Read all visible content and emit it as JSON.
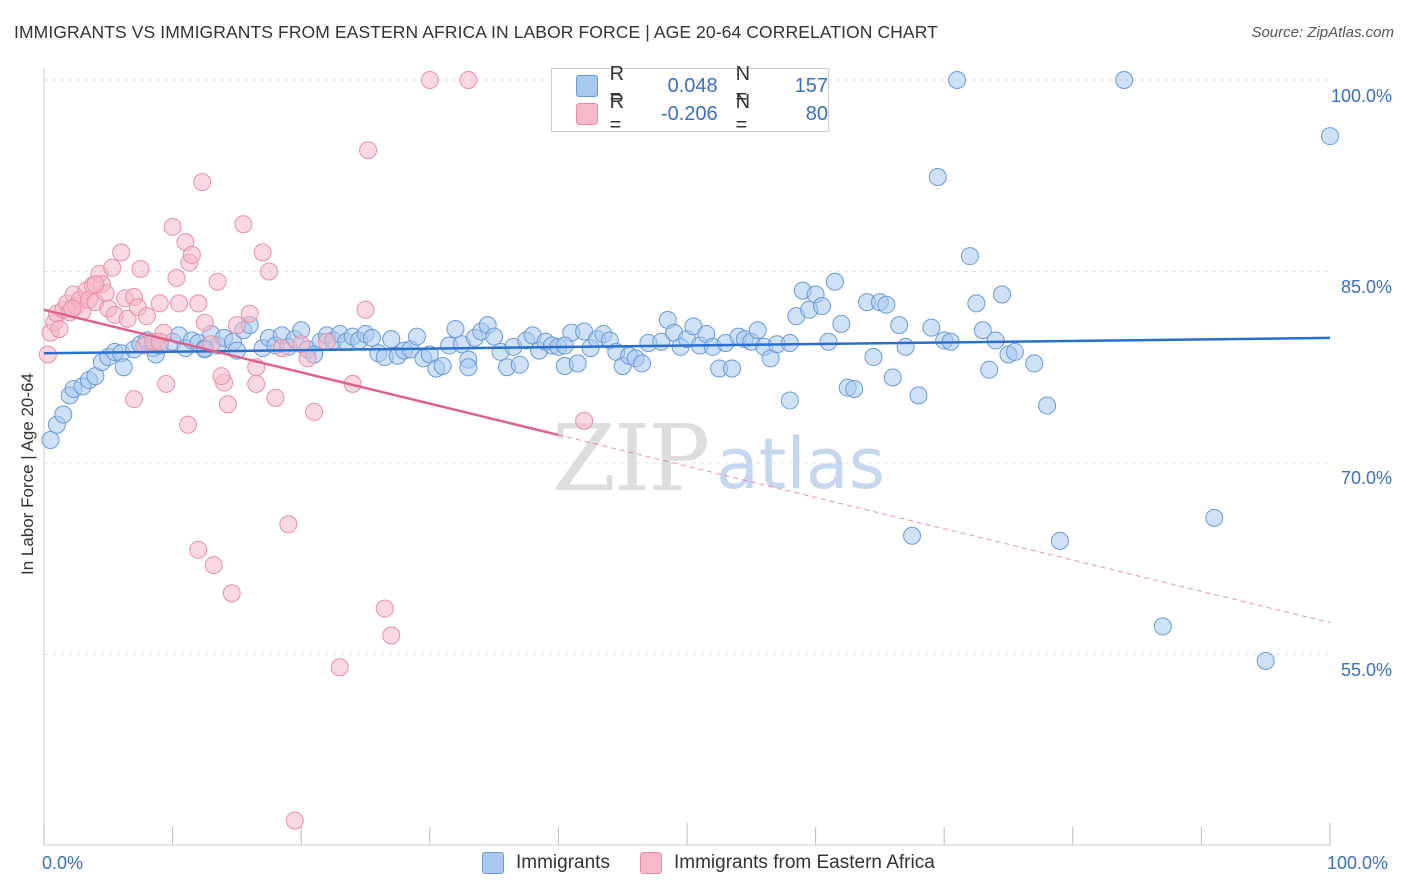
{
  "header": {
    "title": "IMMIGRANTS VS IMMIGRANTS FROM EASTERN AFRICA IN LABOR FORCE | AGE 20-64 CORRELATION CHART",
    "source": "Source: ZipAtlas.com"
  },
  "watermark": {
    "zip": "ZIP",
    "atlas": "atlas"
  },
  "legend": {
    "rows": [
      {
        "r_label": "R =",
        "r_value": "0.048",
        "n_label": "N =",
        "n_value": "157",
        "color": "#a8c8f0"
      },
      {
        "r_label": "R =",
        "r_value": "-0.206",
        "n_label": "N =",
        "n_value": "80",
        "color": "#f5b8c8"
      }
    ]
  },
  "bottom_legend": {
    "immigrants": "Immigrants",
    "eastern_africa": "Immigrants from Eastern Africa"
  },
  "axes": {
    "ylabel": "In Labor Force | Age 20-64",
    "x_ticks": {
      "left": "0.0%",
      "right": "100.0%"
    },
    "y_ticks": [
      "100.0%",
      "85.0%",
      "70.0%",
      "55.0%"
    ]
  },
  "colors": {
    "blue_fill": "#a8c8f0",
    "blue_stroke": "#6a9ad8",
    "blue_line": "#2a6fd0",
    "pink_fill": "#f5b8c8",
    "pink_stroke": "#e890a8",
    "pink_line": "#e0608a"
  },
  "chart_data": {
    "type": "scatter",
    "title": "IMMIGRANTS VS IMMIGRANTS FROM EASTERN AFRICA IN LABOR FORCE | AGE 20-64 CORRELATION CHART",
    "xlabel": "",
    "ylabel": "In Labor Force | Age 20-64",
    "xlim": [
      0,
      100
    ],
    "ylim": [
      40.5,
      101
    ],
    "y_ticks": [
      55,
      70,
      85,
      100
    ],
    "grid": true,
    "series": [
      {
        "name": "Immigrants",
        "trend": {
          "x0": 0,
          "y0": 78.6,
          "x1": 100,
          "y1": 79.8
        },
        "points": [
          [
            0.5,
            71.8
          ],
          [
            1,
            73
          ],
          [
            1.5,
            73.8
          ],
          [
            2,
            75.3
          ],
          [
            2.3,
            75.8
          ],
          [
            3,
            76
          ],
          [
            3.5,
            76.5
          ],
          [
            4,
            76.8
          ],
          [
            4.5,
            77.9
          ],
          [
            5,
            78.3
          ],
          [
            5.5,
            78.7
          ],
          [
            6,
            78.6
          ],
          [
            6.2,
            77.5
          ],
          [
            7,
            78.9
          ],
          [
            7.5,
            79.3
          ],
          [
            8,
            79.6
          ],
          [
            8.5,
            79
          ],
          [
            8.7,
            78.5
          ],
          [
            9,
            79.2
          ],
          [
            10,
            79.5
          ],
          [
            10.5,
            80
          ],
          [
            11,
            79
          ],
          [
            11.5,
            79.6
          ],
          [
            12,
            79.4
          ],
          [
            12.5,
            79
          ],
          [
            13,
            80.1
          ],
          [
            13.5,
            79.2
          ],
          [
            14,
            79.8
          ],
          [
            14.7,
            79.5
          ],
          [
            15,
            78.8
          ],
          [
            15.5,
            80.4
          ],
          [
            16,
            80.8
          ],
          [
            17,
            79
          ],
          [
            17.5,
            79.8
          ],
          [
            18,
            79.2
          ],
          [
            18.5,
            80
          ],
          [
            19,
            79.1
          ],
          [
            19.5,
            79.7
          ],
          [
            20,
            80.4
          ],
          [
            20.5,
            78.9
          ],
          [
            21.5,
            79.5
          ],
          [
            22,
            80
          ],
          [
            22.5,
            79.6
          ],
          [
            23,
            80.1
          ],
          [
            23.5,
            79.5
          ],
          [
            24,
            79.9
          ],
          [
            24.5,
            79.6
          ],
          [
            25,
            80.1
          ],
          [
            25.5,
            79.8
          ],
          [
            26,
            78.6
          ],
          [
            26.5,
            78.3
          ],
          [
            27,
            79.7
          ],
          [
            27.5,
            78.4
          ],
          [
            28,
            78.8
          ],
          [
            28.5,
            78.9
          ],
          [
            29,
            79.9
          ],
          [
            29.5,
            78.2
          ],
          [
            30,
            78.5
          ],
          [
            30.5,
            77.4
          ],
          [
            31,
            77.6
          ],
          [
            31.5,
            79.2
          ],
          [
            32,
            80.5
          ],
          [
            32.5,
            79.3
          ],
          [
            33,
            78.1
          ],
          [
            33.5,
            79.8
          ],
          [
            34,
            80.3
          ],
          [
            34.5,
            80.8
          ],
          [
            35,
            79.9
          ],
          [
            35.5,
            78.7
          ],
          [
            36,
            77.5
          ],
          [
            36.5,
            79.1
          ],
          [
            37,
            77.7
          ],
          [
            37.5,
            79.6
          ],
          [
            38,
            80
          ],
          [
            38.5,
            78.8
          ],
          [
            39,
            79.5
          ],
          [
            39.5,
            79.2
          ],
          [
            40,
            79.1
          ],
          [
            40.5,
            77.6
          ],
          [
            41,
            80.2
          ],
          [
            41.5,
            77.8
          ],
          [
            42,
            80.3
          ],
          [
            42.5,
            79
          ],
          [
            43,
            79.7
          ],
          [
            43.5,
            80.1
          ],
          [
            44,
            79.6
          ],
          [
            44.5,
            78.7
          ],
          [
            45,
            77.6
          ],
          [
            45.5,
            78.4
          ],
          [
            46,
            78.2
          ],
          [
            46.5,
            77.8
          ],
          [
            47,
            79.4
          ],
          [
            48,
            79.5
          ],
          [
            48.5,
            81.2
          ],
          [
            49,
            80.2
          ],
          [
            49.5,
            79.1
          ],
          [
            50,
            79.7
          ],
          [
            50.5,
            80.7
          ],
          [
            51,
            79.2
          ],
          [
            51.5,
            80.1
          ],
          [
            52,
            79.1
          ],
          [
            52.5,
            77.4
          ],
          [
            53,
            79.4
          ],
          [
            53.5,
            77.4
          ],
          [
            54,
            79.9
          ],
          [
            54.5,
            79.7
          ],
          [
            55,
            79.5
          ],
          [
            55.5,
            80.4
          ],
          [
            56,
            79.1
          ],
          [
            56.5,
            78.2
          ],
          [
            57,
            79.3
          ],
          [
            58,
            79.4
          ],
          [
            58.5,
            81.5
          ],
          [
            59,
            83.5
          ],
          [
            59.5,
            82
          ],
          [
            60,
            83.2
          ],
          [
            60.5,
            82.3
          ],
          [
            61,
            79.5
          ],
          [
            61.5,
            84.2
          ],
          [
            62,
            80.9
          ],
          [
            62.5,
            75.9
          ],
          [
            63,
            75.8
          ],
          [
            64,
            82.6
          ],
          [
            64.5,
            78.3
          ],
          [
            65,
            82.6
          ],
          [
            65.5,
            82.4
          ],
          [
            66,
            76.7
          ],
          [
            66.5,
            80.8
          ],
          [
            67,
            79.1
          ],
          [
            67.5,
            64.3
          ],
          [
            68,
            75.3
          ],
          [
            69,
            80.6
          ],
          [
            69.5,
            92.4
          ],
          [
            70,
            79.6
          ],
          [
            70.5,
            79.5
          ],
          [
            71,
            100
          ],
          [
            72,
            86.2
          ],
          [
            72.5,
            82.5
          ],
          [
            73,
            80.4
          ],
          [
            73.5,
            77.3
          ],
          [
            74,
            79.6
          ],
          [
            74.5,
            83.2
          ],
          [
            75,
            78.5
          ],
          [
            75.5,
            78.7
          ],
          [
            77,
            77.8
          ],
          [
            78,
            74.5
          ],
          [
            79,
            63.9
          ],
          [
            84,
            100
          ],
          [
            87,
            57.2
          ],
          [
            91,
            65.7
          ],
          [
            95,
            54.5
          ],
          [
            100,
            95.6
          ],
          [
            58,
            74.9
          ],
          [
            40.5,
            79.2
          ],
          [
            33,
            77.5
          ],
          [
            21,
            78.5
          ],
          [
            12.5,
            78.9
          ]
        ]
      },
      {
        "name": "Immigrants from Eastern Africa",
        "trend": {
          "x0": 0,
          "y0": 82,
          "x1": 100,
          "y1": 57.5,
          "solid_until_x": 40
        },
        "points": [
          [
            0.3,
            78.5
          ],
          [
            0.5,
            80.2
          ],
          [
            0.8,
            81
          ],
          [
            1,
            81.7
          ],
          [
            1.2,
            80.5
          ],
          [
            1.5,
            82
          ],
          [
            1.8,
            82.5
          ],
          [
            2,
            81.8
          ],
          [
            2.3,
            83.2
          ],
          [
            2.5,
            82.3
          ],
          [
            2.8,
            82.8
          ],
          [
            3,
            81.9
          ],
          [
            3.3,
            83.5
          ],
          [
            3.5,
            82.8
          ],
          [
            3.8,
            83.9
          ],
          [
            4,
            82.6
          ],
          [
            4.3,
            84.8
          ],
          [
            4.5,
            84
          ],
          [
            4.8,
            83.3
          ],
          [
            5,
            82.1
          ],
          [
            5.3,
            85.3
          ],
          [
            5.5,
            81.6
          ],
          [
            6,
            86.5
          ],
          [
            6.3,
            82.9
          ],
          [
            6.5,
            81.3
          ],
          [
            7,
            83
          ],
          [
            7.3,
            82.2
          ],
          [
            7.5,
            85.2
          ],
          [
            7.8,
            79.2
          ],
          [
            8,
            81.5
          ],
          [
            8.5,
            79.5
          ],
          [
            9,
            82.5
          ],
          [
            9.3,
            80.2
          ],
          [
            9.5,
            76.2
          ],
          [
            10,
            88.5
          ],
          [
            10.3,
            84.5
          ],
          [
            10.5,
            82.5
          ],
          [
            11,
            87.3
          ],
          [
            11.3,
            85.7
          ],
          [
            11.5,
            86.3
          ],
          [
            12,
            82.5
          ],
          [
            12.3,
            92
          ],
          [
            12.5,
            81
          ],
          [
            13,
            79.3
          ],
          [
            13.5,
            84.2
          ],
          [
            14,
            76.3
          ],
          [
            14.3,
            74.6
          ],
          [
            15,
            80.8
          ],
          [
            15.5,
            88.7
          ],
          [
            16,
            81.7
          ],
          [
            16.5,
            76.2
          ],
          [
            17,
            86.5
          ],
          [
            17.5,
            85
          ],
          [
            18,
            75.1
          ],
          [
            18.5,
            79
          ],
          [
            19,
            65.2
          ],
          [
            19.5,
            42
          ],
          [
            20,
            79.3
          ],
          [
            20.5,
            78.2
          ],
          [
            21,
            74
          ],
          [
            22,
            79.5
          ],
          [
            23,
            54
          ],
          [
            24,
            76.2
          ],
          [
            25,
            82
          ],
          [
            25.2,
            94.5
          ],
          [
            26.5,
            58.6
          ],
          [
            27,
            56.5
          ],
          [
            30,
            100
          ],
          [
            33,
            100
          ],
          [
            42,
            73.3
          ],
          [
            4,
            84
          ],
          [
            7,
            75
          ],
          [
            11.2,
            73
          ],
          [
            12,
            63.2
          ],
          [
            13.2,
            62
          ],
          [
            14.6,
            59.8
          ],
          [
            9,
            79.5
          ],
          [
            16.5,
            77.5
          ],
          [
            13.8,
            76.8
          ],
          [
            2.2,
            82.1
          ]
        ]
      }
    ]
  }
}
